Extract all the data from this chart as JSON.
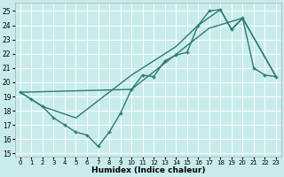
{
  "xlabel": "Humidex (Indice chaleur)",
  "bg_color": "#c8ecec",
  "grid_color": "#ffffff",
  "line_color": "#2d7a74",
  "xlim": [
    -0.5,
    23.5
  ],
  "ylim": [
    14.8,
    25.6
  ],
  "yticks": [
    15,
    16,
    17,
    18,
    19,
    20,
    21,
    22,
    23,
    24,
    25
  ],
  "xticks": [
    0,
    1,
    2,
    3,
    4,
    5,
    6,
    7,
    8,
    9,
    10,
    11,
    12,
    13,
    14,
    15,
    16,
    17,
    18,
    19,
    20,
    21,
    22,
    23
  ],
  "line1_x": [
    0,
    1,
    2,
    3,
    4,
    5,
    6,
    7,
    8,
    9,
    10,
    11,
    12,
    13,
    14,
    15,
    16,
    17,
    18,
    19,
    20,
    21,
    22,
    23
  ],
  "line1_y": [
    19.3,
    18.8,
    18.3,
    17.5,
    17.0,
    16.5,
    16.3,
    15.5,
    16.5,
    17.8,
    19.5,
    20.5,
    20.4,
    21.5,
    21.9,
    22.1,
    24.0,
    25.0,
    25.1,
    23.7,
    24.5,
    21.0,
    20.5,
    20.4
  ],
  "line2_x": [
    0,
    2,
    5,
    10,
    14,
    16,
    18,
    19,
    20,
    23
  ],
  "line2_y": [
    19.3,
    18.3,
    17.5,
    20.5,
    22.5,
    24.0,
    25.1,
    23.7,
    24.5,
    20.4
  ],
  "line3_x": [
    0,
    10,
    17,
    20,
    23
  ],
  "line3_y": [
    19.3,
    19.5,
    23.8,
    24.5,
    20.4
  ]
}
